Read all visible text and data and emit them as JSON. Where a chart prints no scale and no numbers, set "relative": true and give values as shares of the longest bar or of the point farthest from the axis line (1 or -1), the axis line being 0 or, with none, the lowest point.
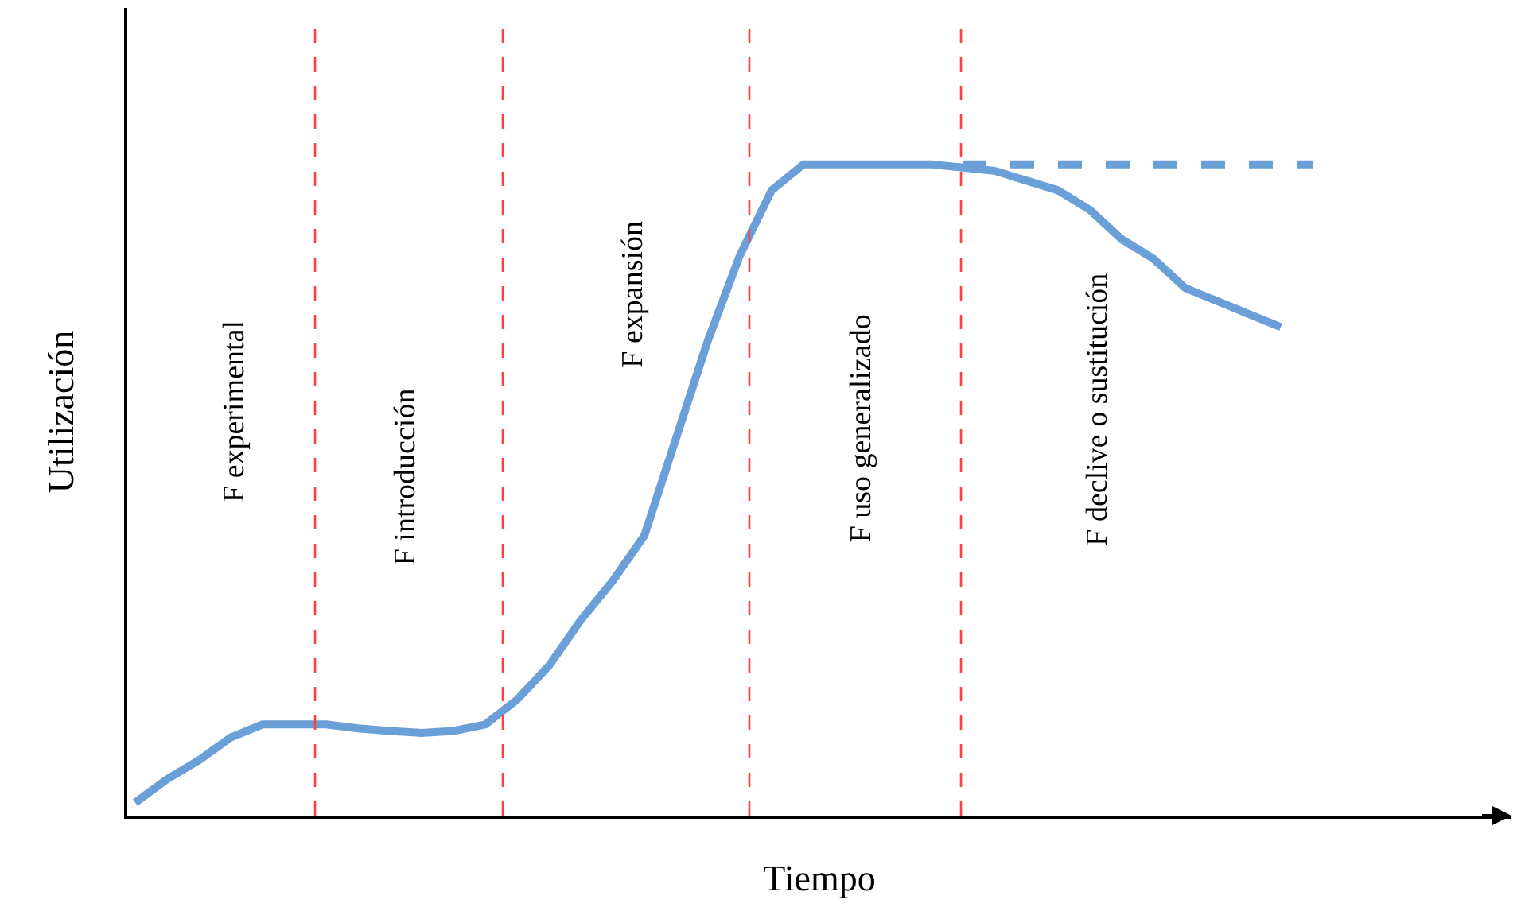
{
  "chart_data": {
    "type": "line",
    "relative": true,
    "xlabel": "Tiempo",
    "ylabel": "Utilización",
    "grid": false,
    "marker": "none",
    "categories": [
      null,
      null,
      null,
      null,
      null,
      null,
      null,
      null,
      null,
      null,
      null,
      null,
      null,
      null,
      null,
      null,
      null,
      null,
      null,
      null,
      null,
      null,
      null,
      null,
      null,
      null,
      null,
      null,
      null,
      null,
      null,
      null,
      null,
      null,
      null,
      null,
      null,
      null
    ],
    "series": [
      {
        "color": "#6a9fd8",
        "line_style": "solid",
        "values": [
          0.02,
          0.056,
          0.085,
          0.12,
          0.14,
          0.14,
          0.14,
          0.134,
          0.13,
          0.127,
          0.13,
          0.14,
          0.178,
          0.23,
          0.3,
          0.36,
          0.43,
          0.58,
          0.73,
          0.86,
          0.96,
          1,
          1,
          1,
          1,
          1,
          0.995,
          0.99,
          0.975,
          0.96,
          0.93,
          0.885,
          0.855,
          0.81,
          0.79,
          0.77,
          0.75,
          null
        ]
      },
      {
        "color": "#6a9fd8",
        "line_style": "dashed",
        "values": [
          null,
          null,
          null,
          null,
          null,
          null,
          null,
          null,
          null,
          null,
          null,
          null,
          null,
          null,
          null,
          null,
          null,
          null,
          null,
          null,
          null,
          null,
          null,
          null,
          null,
          null,
          1,
          1,
          1,
          1,
          1,
          1,
          1,
          1,
          1,
          1,
          1,
          1
        ]
      }
    ],
    "annotations": [
      "F experimental",
      "F introducción",
      "F expansión",
      "F uso generalizado",
      "F declive o sustitución"
    ]
  }
}
